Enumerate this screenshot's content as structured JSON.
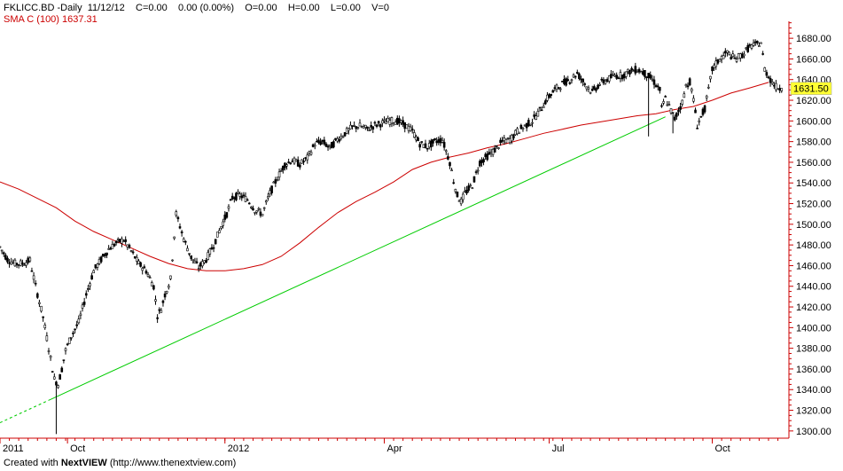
{
  "header": {
    "symbol": "FKLICC.BD -Daily",
    "date": "11/12/12",
    "close": "C=0.00",
    "change": "0.00 (0.00%)",
    "open": "O=0.00",
    "high": "H=0.00",
    "low": "L=0.00",
    "volume": "V=0",
    "sma_label": "SMA C (100) 1637.31"
  },
  "footer": {
    "prefix": "Created with ",
    "brand_a": "Next",
    "brand_b": "VIEW",
    "url": " (http://www.thenextview.com)"
  },
  "colors": {
    "candle": "#000000",
    "sma": "#cc0000",
    "trendline": "#00cc00",
    "axis": "#cc0000",
    "grid": "#e6e6e6",
    "price_tag_bg": "#ffff33"
  },
  "chart_data": {
    "type": "candlestick",
    "title": "FKLICC.BD -Daily",
    "ylim": [
      1293,
      1693
    ],
    "y_ticks": [
      "1300.00",
      "1320.00",
      "1340.00",
      "1360.00",
      "1380.00",
      "1400.00",
      "1420.00",
      "1440.00",
      "1460.00",
      "1480.00",
      "1500.00",
      "1520.00",
      "1540.00",
      "1560.00",
      "1580.00",
      "1600.00",
      "1620.00",
      "1640.00",
      "1660.00",
      "1680.00"
    ],
    "y_tick_values": [
      1300,
      1320,
      1340,
      1360,
      1380,
      1400,
      1420,
      1440,
      1460,
      1480,
      1500,
      1520,
      1540,
      1560,
      1580,
      1600,
      1620,
      1640,
      1660,
      1680
    ],
    "x_tick_labels": [
      {
        "label": "2011",
        "day": 0
      },
      {
        "label": "Oct",
        "day": 36
      },
      {
        "label": "2012",
        "day": 120
      },
      {
        "label": "Apr",
        "day": 205
      },
      {
        "label": "Jul",
        "day": 293
      },
      {
        "label": "Oct",
        "day": 380
      }
    ],
    "x_range_days": [
      0,
      419
    ],
    "last_price": "1631.50",
    "last_value": 1631.5,
    "price_path": [
      [
        0,
        1478
      ],
      [
        4,
        1466
      ],
      [
        8,
        1462
      ],
      [
        12,
        1462
      ],
      [
        16,
        1465
      ],
      [
        19,
        1440
      ],
      [
        23,
        1410
      ],
      [
        26,
        1380
      ],
      [
        29,
        1350
      ],
      [
        31,
        1345
      ],
      [
        33,
        1360
      ],
      [
        35,
        1378
      ],
      [
        38,
        1392
      ],
      [
        42,
        1405
      ],
      [
        46,
        1432
      ],
      [
        50,
        1455
      ],
      [
        54,
        1466
      ],
      [
        58,
        1476
      ],
      [
        62,
        1482
      ],
      [
        66,
        1485
      ],
      [
        70,
        1474
      ],
      [
        74,
        1462
      ],
      [
        78,
        1455
      ],
      [
        82,
        1440
      ],
      [
        84,
        1412
      ],
      [
        86,
        1418
      ],
      [
        88,
        1432
      ],
      [
        91,
        1447
      ],
      [
        94,
        1510
      ],
      [
        96,
        1498
      ],
      [
        98,
        1486
      ],
      [
        102,
        1468
      ],
      [
        106,
        1458
      ],
      [
        110,
        1466
      ],
      [
        114,
        1480
      ],
      [
        118,
        1498
      ],
      [
        121,
        1510
      ],
      [
        124,
        1526
      ],
      [
        128,
        1528
      ],
      [
        132,
        1524
      ],
      [
        136,
        1514
      ],
      [
        140,
        1510
      ],
      [
        144,
        1530
      ],
      [
        148,
        1545
      ],
      [
        152,
        1558
      ],
      [
        156,
        1562
      ],
      [
        160,
        1558
      ],
      [
        164,
        1564
      ],
      [
        168,
        1578
      ],
      [
        172,
        1580
      ],
      [
        176,
        1574
      ],
      [
        180,
        1582
      ],
      [
        184,
        1588
      ],
      [
        188,
        1594
      ],
      [
        192,
        1595
      ],
      [
        196,
        1592
      ],
      [
        200,
        1596
      ],
      [
        204,
        1598
      ],
      [
        208,
        1600
      ],
      [
        212,
        1600
      ],
      [
        216,
        1596
      ],
      [
        220,
        1590
      ],
      [
        224,
        1578
      ],
      [
        228,
        1575
      ],
      [
        232,
        1580
      ],
      [
        236,
        1582
      ],
      [
        240,
        1560
      ],
      [
        242,
        1542
      ],
      [
        244,
        1528
      ],
      [
        246,
        1522
      ],
      [
        248,
        1530
      ],
      [
        252,
        1538
      ],
      [
        256,
        1560
      ],
      [
        260,
        1566
      ],
      [
        264,
        1572
      ],
      [
        268,
        1580
      ],
      [
        272,
        1582
      ],
      [
        276,
        1590
      ],
      [
        280,
        1595
      ],
      [
        284,
        1600
      ],
      [
        288,
        1610
      ],
      [
        292,
        1622
      ],
      [
        296,
        1630
      ],
      [
        300,
        1636
      ],
      [
        304,
        1640
      ],
      [
        308,
        1646
      ],
      [
        312,
        1636
      ],
      [
        316,
        1628
      ],
      [
        320,
        1636
      ],
      [
        324,
        1640
      ],
      [
        328,
        1644
      ],
      [
        332,
        1644
      ],
      [
        336,
        1648
      ],
      [
        340,
        1650
      ],
      [
        344,
        1646
      ],
      [
        348,
        1640
      ],
      [
        352,
        1630
      ],
      [
        353,
        1612
      ],
      [
        355,
        1622
      ],
      [
        358,
        1610
      ],
      [
        360,
        1602
      ],
      [
        362,
        1610
      ],
      [
        364,
        1618
      ],
      [
        366,
        1634
      ],
      [
        368,
        1638
      ],
      [
        370,
        1620
      ],
      [
        372,
        1596
      ],
      [
        374,
        1604
      ],
      [
        376,
        1612
      ],
      [
        378,
        1630
      ],
      [
        380,
        1650
      ],
      [
        384,
        1660
      ],
      [
        388,
        1666
      ],
      [
        392,
        1660
      ],
      [
        396,
        1664
      ],
      [
        400,
        1672
      ],
      [
        404,
        1674
      ],
      [
        406,
        1676
      ],
      [
        408,
        1650
      ],
      [
        411,
        1640
      ],
      [
        414,
        1633
      ],
      [
        417,
        1631.5
      ]
    ],
    "sma_series": {
      "name": "SMA C (100)",
      "values": [
        [
          0,
          1541
        ],
        [
          10,
          1534
        ],
        [
          20,
          1525
        ],
        [
          30,
          1516
        ],
        [
          40,
          1503
        ],
        [
          50,
          1493
        ],
        [
          60,
          1485
        ],
        [
          70,
          1477
        ],
        [
          80,
          1469
        ],
        [
          90,
          1462
        ],
        [
          100,
          1457
        ],
        [
          110,
          1455
        ],
        [
          120,
          1455
        ],
        [
          130,
          1457
        ],
        [
          140,
          1461
        ],
        [
          150,
          1469
        ],
        [
          160,
          1482
        ],
        [
          170,
          1497
        ],
        [
          180,
          1511
        ],
        [
          190,
          1522
        ],
        [
          200,
          1531
        ],
        [
          210,
          1541
        ],
        [
          220,
          1553
        ],
        [
          230,
          1560
        ],
        [
          240,
          1565
        ],
        [
          250,
          1569
        ],
        [
          260,
          1574
        ],
        [
          270,
          1578
        ],
        [
          280,
          1583
        ],
        [
          290,
          1588
        ],
        [
          300,
          1592
        ],
        [
          310,
          1596
        ],
        [
          320,
          1599
        ],
        [
          330,
          1602
        ],
        [
          340,
          1605
        ],
        [
          350,
          1607
        ],
        [
          360,
          1611
        ],
        [
          370,
          1614
        ],
        [
          380,
          1620
        ],
        [
          390,
          1627
        ],
        [
          400,
          1632
        ],
        [
          410,
          1637.31
        ]
      ]
    },
    "trendline": {
      "from": [
        0,
        1308
      ],
      "to": [
        355,
        1604
      ],
      "dashed_until": 27
    }
  }
}
